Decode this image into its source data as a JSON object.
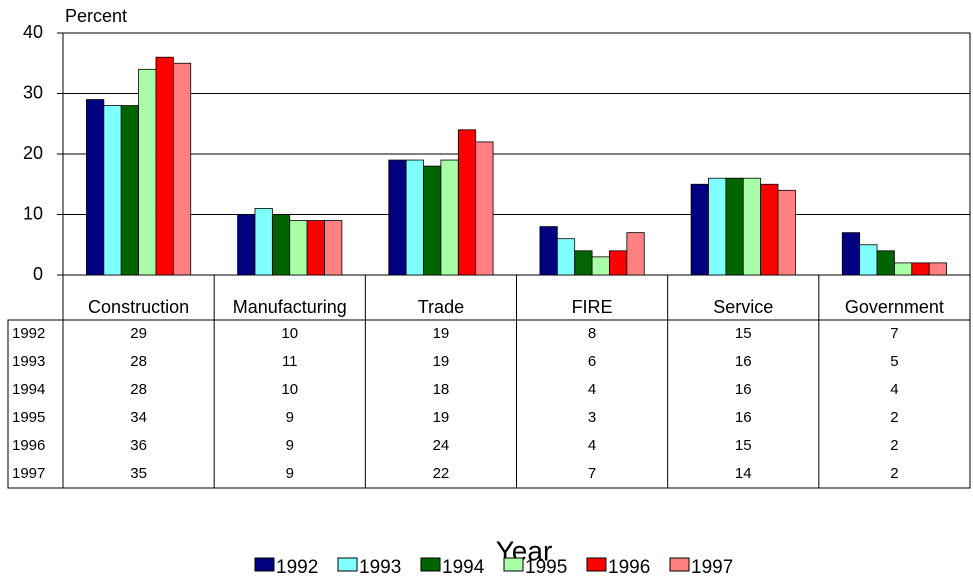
{
  "chart_data": {
    "type": "bar",
    "y_label": "Percent",
    "x_label": "Year",
    "categories": [
      "Construction",
      "Manufacturing",
      "Trade",
      "FIRE",
      "Service",
      "Government"
    ],
    "series": [
      {
        "name": "1992",
        "color": "#000080",
        "values": [
          29,
          10,
          19,
          8,
          15,
          7
        ]
      },
      {
        "name": "1993",
        "color": "#80ffff",
        "values": [
          28,
          11,
          19,
          6,
          16,
          5
        ]
      },
      {
        "name": "1994",
        "color": "#006400",
        "values": [
          28,
          10,
          18,
          4,
          16,
          4
        ]
      },
      {
        "name": "1995",
        "color": "#a8ffa8",
        "values": [
          34,
          9,
          19,
          3,
          16,
          2
        ]
      },
      {
        "name": "1996",
        "color": "#ff0000",
        "values": [
          36,
          9,
          24,
          4,
          15,
          2
        ]
      },
      {
        "name": "1997",
        "color": "#ff8080",
        "values": [
          35,
          9,
          22,
          7,
          14,
          2
        ]
      }
    ],
    "ylim": [
      0,
      40
    ],
    "yticks": [
      0,
      10,
      20,
      30,
      40
    ],
    "grid": true
  }
}
